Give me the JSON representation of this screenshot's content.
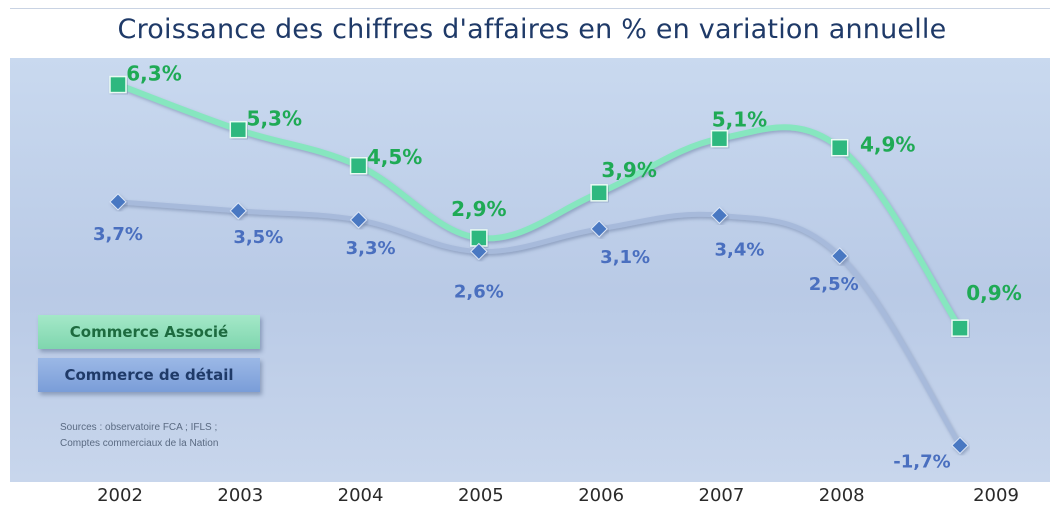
{
  "chart_data": {
    "type": "line",
    "title": "Croissance des chiffres d'affaires en % en variation annuelle",
    "categories": [
      "2002",
      "2003",
      "2004",
      "2005",
      "2006",
      "2007",
      "2008",
      "2009"
    ],
    "series": [
      {
        "name": "Commerce Associé",
        "values": [
          6.3,
          5.3,
          4.5,
          2.9,
          3.9,
          5.1,
          4.9,
          0.9
        ],
        "labels": [
          "6,3%",
          "5,3%",
          "4,5%",
          "2,9%",
          "3,9%",
          "5,1%",
          "4,9%",
          "0,9%"
        ],
        "color": "#2db87f",
        "marker": "square"
      },
      {
        "name": "Commerce de détail",
        "values": [
          3.7,
          3.5,
          3.3,
          2.6,
          3.1,
          3.4,
          2.5,
          -1.7
        ],
        "labels": [
          "3,7%",
          "3,5%",
          "3,3%",
          "2,6%",
          "3,1%",
          "3,4%",
          "2,5%",
          "-1,7%"
        ],
        "color": "#4a78c2",
        "marker": "diamond"
      }
    ],
    "ylim": [
      -2.2,
      6.8
    ],
    "grid": false,
    "legend_position": "left"
  },
  "legend": {
    "assoc": "Commerce Associé",
    "detail": "Commerce de détail"
  },
  "source": {
    "line1": "Sources : observatoire FCA ; IFLS ;",
    "line2": "Comptes commerciaux de la Nation"
  }
}
